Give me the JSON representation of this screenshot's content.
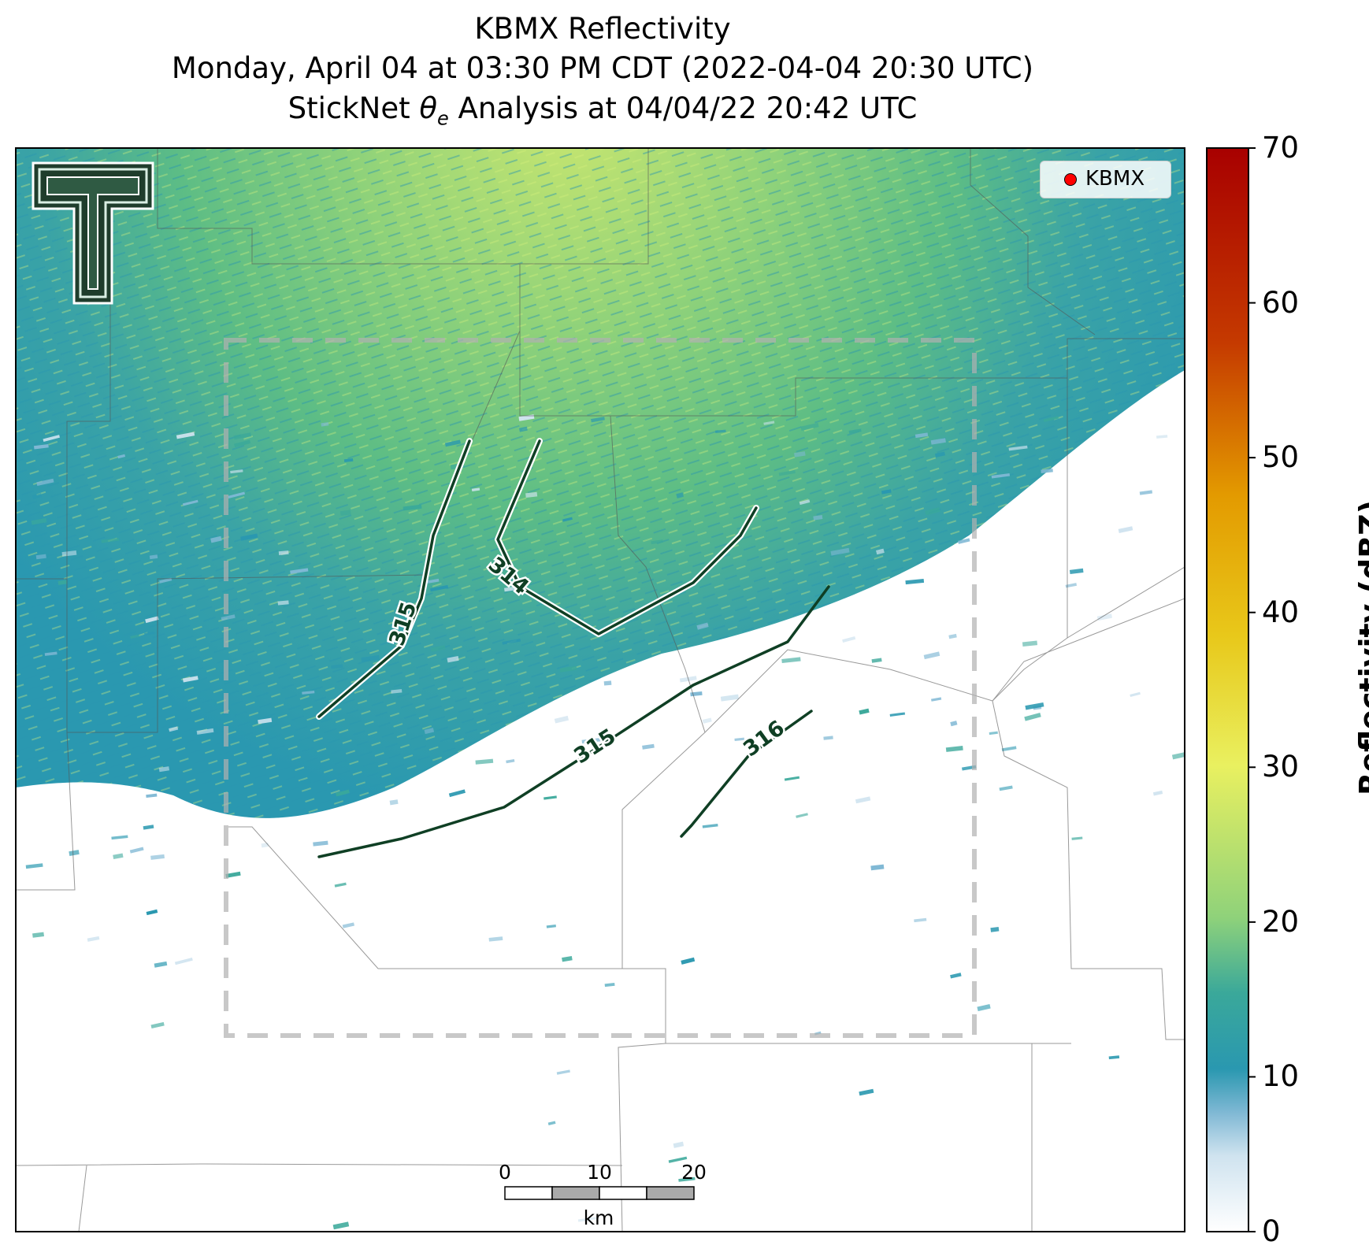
{
  "title": {
    "line1": "KBMX Reflectivity",
    "line2": "Monday, April 04 at 03:30 PM CDT (2022-04-04 20:30 UTC)",
    "line3": "StickNet θe Analysis at 04/04/22 20:42 UTC"
  },
  "legend": {
    "station": "KBMX",
    "marker_color": "#ff0000"
  },
  "colorbar": {
    "label": "Reflectivity (dBZ)",
    "ticks": [
      "0",
      "10",
      "20",
      "30",
      "40",
      "50",
      "60",
      "70"
    ],
    "min": 0,
    "max": 70,
    "colors": [
      "#ffffff",
      "#cfe3ef",
      "#7fb8d4",
      "#2a98b0",
      "#3aa89a",
      "#5dbd85",
      "#8fd27a",
      "#c8e66f",
      "#e9f060",
      "#e8c81a",
      "#e39a00",
      "#d56a00",
      "#c53a00",
      "#a80000"
    ]
  },
  "scale_bar": {
    "ticks": [
      "0",
      "10",
      "20"
    ],
    "unit": "km"
  },
  "contours": [
    {
      "label": "315"
    },
    {
      "label": "314"
    },
    {
      "label": "315"
    },
    {
      "label": "316"
    }
  ],
  "logo": {
    "name": "texas-tech-double-t-logo"
  }
}
